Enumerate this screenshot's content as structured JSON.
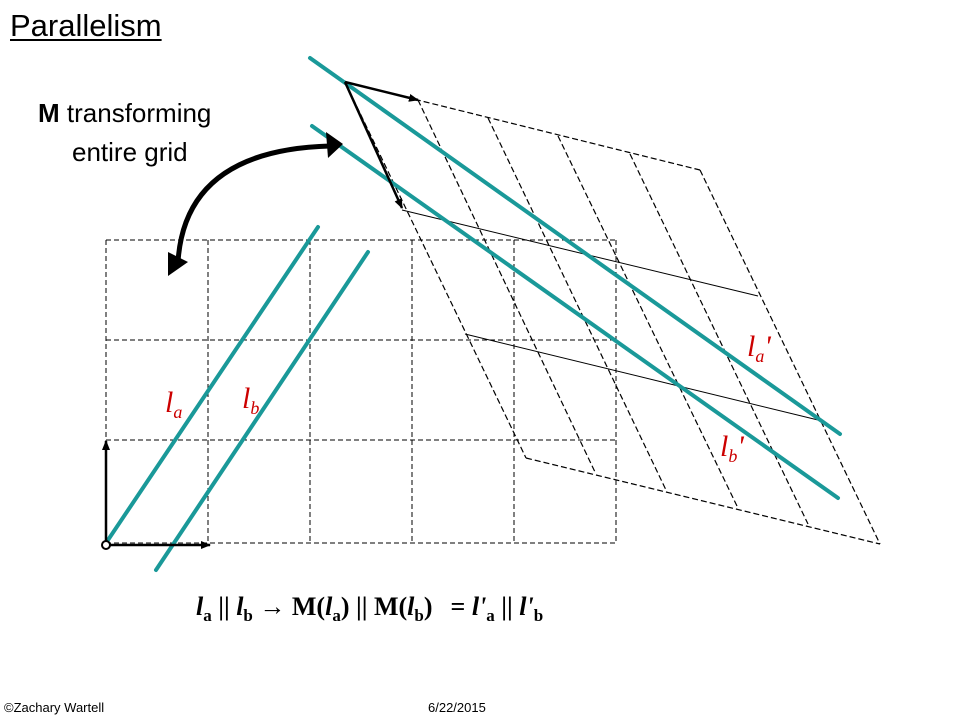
{
  "title": "Parallelism",
  "subtitle": {
    "bold": "M",
    "rest": " transforming",
    "line2": "entire grid"
  },
  "labels": {
    "la": "l",
    "la_sub": "a",
    "lb": "l",
    "lb_sub": "b",
    "la_prime": "l",
    "la_prime_sub": "a",
    "la_prime_mark": "'",
    "lb_prime": "l",
    "lb_prime_sub": "b",
    "lb_prime_mark": "'"
  },
  "equation": {
    "l1": "l",
    "s1": "a",
    "op1": " || ",
    "l2": "l",
    "s2": "b",
    "arrow": " → M(",
    "l3": "l",
    "s3": "a",
    "mid": ") || M(",
    "l4": "l",
    "s4": "b",
    "close": ")",
    "eq": "= ",
    "l5": "l'",
    "s5": "a",
    "op2": " || ",
    "l6": "l'",
    "s6": "b"
  },
  "footer": {
    "author": "©Zachary Wartell",
    "date": "6/22/2015"
  },
  "colors": {
    "teal": "#1a9999",
    "black": "#000000"
  }
}
